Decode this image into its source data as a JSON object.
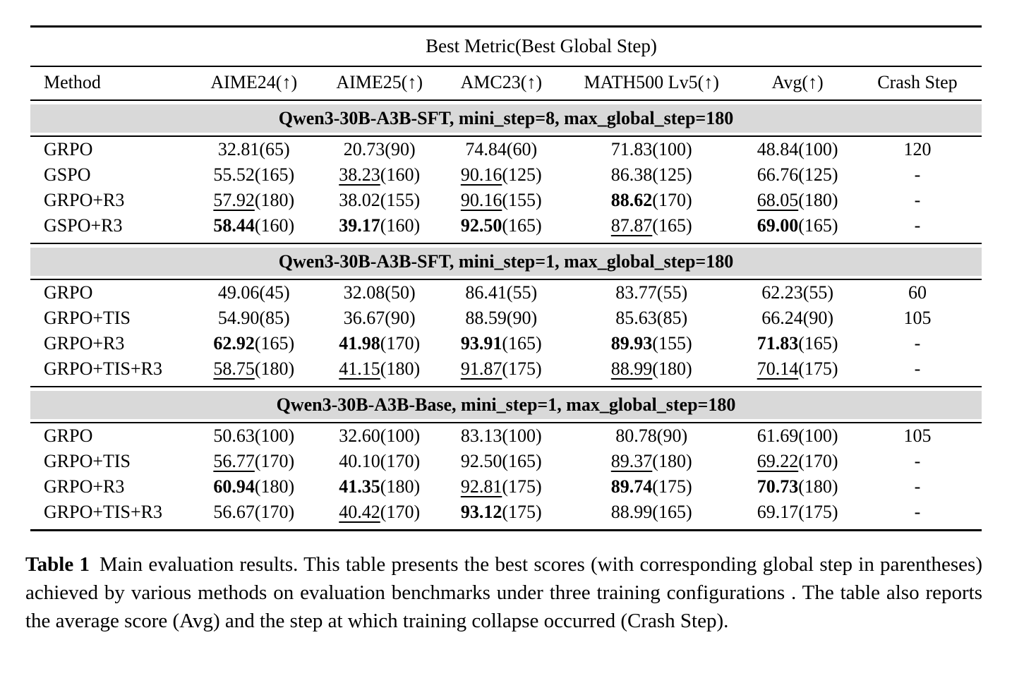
{
  "colors": {
    "section_band": "#d9d9d9",
    "rule": "#000000",
    "text": "#000000"
  },
  "table": {
    "top_header": "Best Metric(Best Global Step)",
    "columns": [
      "Method",
      "AIME24(↑)",
      "AIME25(↑)",
      "AMC23(↑)",
      "MATH500 Lv5(↑)",
      "Avg(↑)",
      "Crash Step"
    ],
    "sections": [
      {
        "title": "Qwen3-30B-A3B-SFT, mini_step=8, max_global_step=180",
        "rows": [
          {
            "method": "GRPO",
            "cells": [
              {
                "v": "32.81",
                "p": "(65)",
                "fmt": "plain"
              },
              {
                "v": "20.73",
                "p": "(90)",
                "fmt": "plain"
              },
              {
                "v": "74.84",
                "p": "(60)",
                "fmt": "plain"
              },
              {
                "v": "71.83",
                "p": "(100)",
                "fmt": "plain"
              },
              {
                "v": "48.84",
                "p": "(100)",
                "fmt": "plain"
              }
            ],
            "crash": "120"
          },
          {
            "method": "GSPO",
            "cells": [
              {
                "v": "55.52",
                "p": "(165)",
                "fmt": "plain"
              },
              {
                "v": "38.23",
                "p": "(160)",
                "fmt": "underline"
              },
              {
                "v": "90.16",
                "p": "(125)",
                "fmt": "underline"
              },
              {
                "v": "86.38",
                "p": "(125)",
                "fmt": "plain"
              },
              {
                "v": "66.76",
                "p": "(125)",
                "fmt": "plain"
              }
            ],
            "crash": "-"
          },
          {
            "method": "GRPO+R3",
            "cells": [
              {
                "v": "57.92",
                "p": "(180)",
                "fmt": "underline"
              },
              {
                "v": "38.02",
                "p": "(155)",
                "fmt": "plain"
              },
              {
                "v": "90.16",
                "p": "(155)",
                "fmt": "underline"
              },
              {
                "v": "88.62",
                "p": "(170)",
                "fmt": "bold"
              },
              {
                "v": "68.05",
                "p": "(180)",
                "fmt": "underline"
              }
            ],
            "crash": "-"
          },
          {
            "method": "GSPO+R3",
            "cells": [
              {
                "v": "58.44",
                "p": "(160)",
                "fmt": "bold"
              },
              {
                "v": "39.17",
                "p": "(160)",
                "fmt": "bold"
              },
              {
                "v": "92.50",
                "p": "(165)",
                "fmt": "bold"
              },
              {
                "v": "87.87",
                "p": "(165)",
                "fmt": "underline"
              },
              {
                "v": "69.00",
                "p": "(165)",
                "fmt": "bold"
              }
            ],
            "crash": "-"
          }
        ]
      },
      {
        "title": "Qwen3-30B-A3B-SFT, mini_step=1, max_global_step=180",
        "rows": [
          {
            "method": "GRPO",
            "cells": [
              {
                "v": "49.06",
                "p": "(45)",
                "fmt": "plain"
              },
              {
                "v": "32.08",
                "p": "(50)",
                "fmt": "plain"
              },
              {
                "v": "86.41",
                "p": "(55)",
                "fmt": "plain"
              },
              {
                "v": "83.77",
                "p": "(55)",
                "fmt": "plain"
              },
              {
                "v": "62.23",
                "p": "(55)",
                "fmt": "plain"
              }
            ],
            "crash": "60"
          },
          {
            "method": "GRPO+TIS",
            "cells": [
              {
                "v": "54.90",
                "p": "(85)",
                "fmt": "plain"
              },
              {
                "v": "36.67",
                "p": "(90)",
                "fmt": "plain"
              },
              {
                "v": "88.59",
                "p": "(90)",
                "fmt": "plain"
              },
              {
                "v": "85.63",
                "p": "(85)",
                "fmt": "plain"
              },
              {
                "v": "66.24",
                "p": "(90)",
                "fmt": "plain"
              }
            ],
            "crash": "105"
          },
          {
            "method": "GRPO+R3",
            "cells": [
              {
                "v": "62.92",
                "p": "(165)",
                "fmt": "bold"
              },
              {
                "v": "41.98",
                "p": "(170)",
                "fmt": "bold"
              },
              {
                "v": "93.91",
                "p": "(165)",
                "fmt": "bold"
              },
              {
                "v": "89.93",
                "p": "(155)",
                "fmt": "bold"
              },
              {
                "v": "71.83",
                "p": "(165)",
                "fmt": "bold"
              }
            ],
            "crash": "-"
          },
          {
            "method": "GRPO+TIS+R3",
            "cells": [
              {
                "v": "58.75",
                "p": "(180)",
                "fmt": "underline"
              },
              {
                "v": "41.15",
                "p": "(180)",
                "fmt": "underline"
              },
              {
                "v": "91.87",
                "p": "(175)",
                "fmt": "underline"
              },
              {
                "v": "88.99",
                "p": "(180)",
                "fmt": "underline"
              },
              {
                "v": "70.14",
                "p": "(175)",
                "fmt": "underline"
              }
            ],
            "crash": "-"
          }
        ]
      },
      {
        "title": "Qwen3-30B-A3B-Base, mini_step=1, max_global_step=180",
        "rows": [
          {
            "method": "GRPO",
            "cells": [
              {
                "v": "50.63",
                "p": "(100)",
                "fmt": "plain"
              },
              {
                "v": "32.60",
                "p": "(100)",
                "fmt": "plain"
              },
              {
                "v": "83.13",
                "p": "(100)",
                "fmt": "plain"
              },
              {
                "v": "80.78",
                "p": "(90)",
                "fmt": "plain"
              },
              {
                "v": "61.69",
                "p": "(100)",
                "fmt": "plain"
              }
            ],
            "crash": "105"
          },
          {
            "method": "GRPO+TIS",
            "cells": [
              {
                "v": "56.77",
                "p": "(170)",
                "fmt": "underline"
              },
              {
                "v": "40.10",
                "p": "(170)",
                "fmt": "plain"
              },
              {
                "v": "92.50",
                "p": "(165)",
                "fmt": "plain"
              },
              {
                "v": "89.37",
                "p": "(180)",
                "fmt": "underline"
              },
              {
                "v": "69.22",
                "p": "(170)",
                "fmt": "underline"
              }
            ],
            "crash": "-"
          },
          {
            "method": "GRPO+R3",
            "cells": [
              {
                "v": "60.94",
                "p": "(180)",
                "fmt": "bold"
              },
              {
                "v": "41.35",
                "p": "(180)",
                "fmt": "bold"
              },
              {
                "v": "92.81",
                "p": "(175)",
                "fmt": "underline"
              },
              {
                "v": "89.74",
                "p": "(175)",
                "fmt": "bold"
              },
              {
                "v": "70.73",
                "p": "(180)",
                "fmt": "bold"
              }
            ],
            "crash": "-"
          },
          {
            "method": "GRPO+TIS+R3",
            "cells": [
              {
                "v": "56.67",
                "p": "(170)",
                "fmt": "plain"
              },
              {
                "v": "40.42",
                "p": "(170)",
                "fmt": "underline"
              },
              {
                "v": "93.12",
                "p": "(175)",
                "fmt": "bold"
              },
              {
                "v": "88.99",
                "p": "(165)",
                "fmt": "plain"
              },
              {
                "v": "69.17",
                "p": "(175)",
                "fmt": "plain"
              }
            ],
            "crash": "-"
          }
        ]
      }
    ]
  },
  "caption": {
    "label": "Table 1",
    "text": "Main evaluation results. This table presents the best scores (with corresponding global step in parentheses) achieved by various methods on evaluation benchmarks under three training configurations . The table also reports the average score (Avg) and the step at which training collapse occurred (Crash Step)."
  }
}
